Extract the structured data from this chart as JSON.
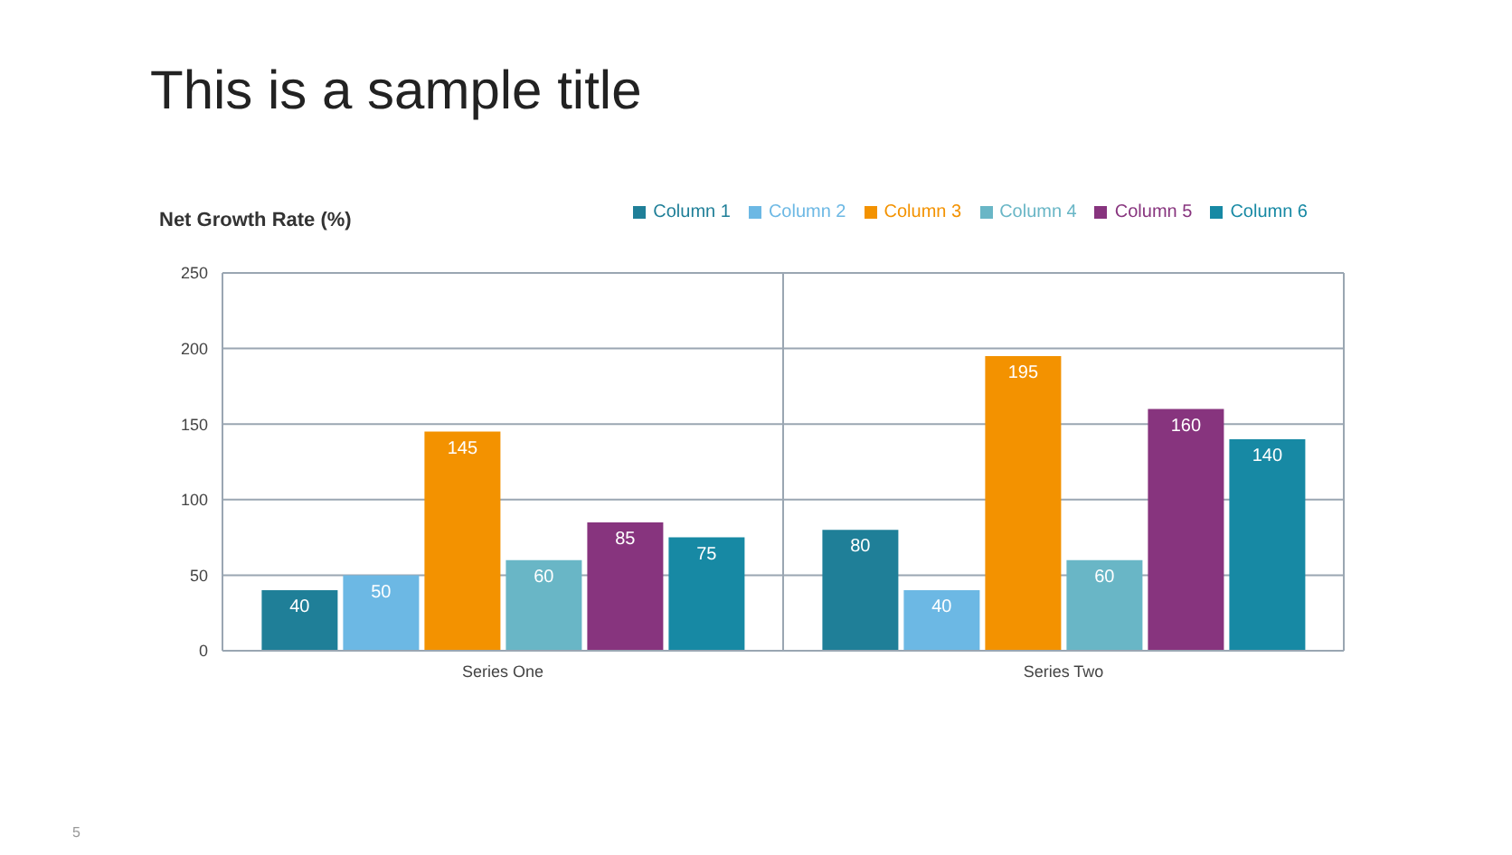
{
  "chart_data": {
    "type": "bar",
    "title": "This is a sample title",
    "ylabel": "Net Growth Rate (%)",
    "categories": [
      "Series One",
      "Series Two"
    ],
    "series": [
      {
        "name": "Column 1",
        "color": "#1f7f98",
        "values": [
          40,
          80
        ]
      },
      {
        "name": "Column 2",
        "color": "#6cb8e4",
        "values": [
          50,
          40
        ]
      },
      {
        "name": "Column 3",
        "color": "#f39200",
        "values": [
          145,
          195
        ]
      },
      {
        "name": "Column 4",
        "color": "#69b6c6",
        "values": [
          60,
          60
        ]
      },
      {
        "name": "Column 5",
        "color": "#87347e",
        "values": [
          85,
          160
        ]
      },
      {
        "name": "Column 6",
        "color": "#1789a4",
        "values": [
          75,
          140
        ]
      }
    ],
    "ylim": [
      0,
      250
    ],
    "yticks": [
      0,
      50,
      100,
      150,
      200,
      250
    ],
    "grid": true,
    "legend": "top right",
    "data_labels": true,
    "annotations": [
      "5"
    ]
  }
}
